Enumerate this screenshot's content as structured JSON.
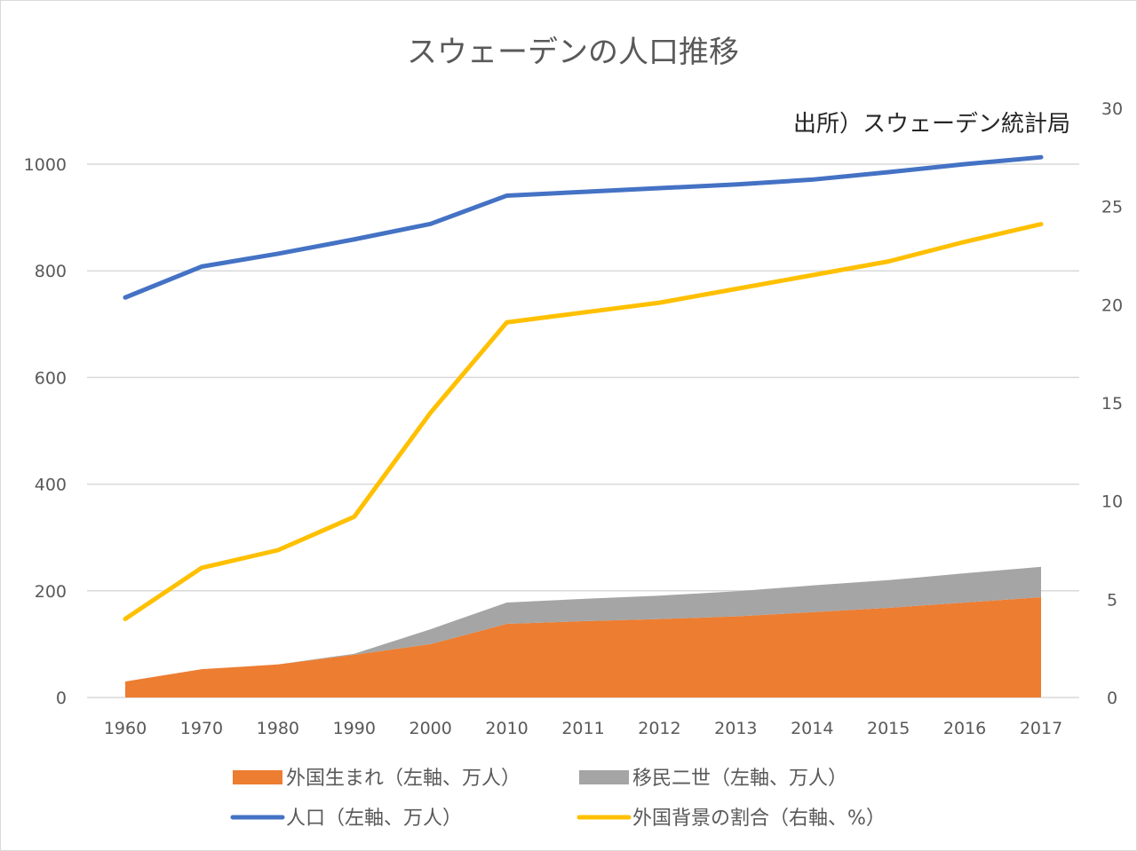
{
  "chart_data": {
    "type": "area",
    "title": "スウェーデンの人口推移",
    "annotation": "出所）スウェーデン統計局",
    "categories": [
      "1960",
      "1970",
      "1980",
      "1990",
      "2000",
      "2010",
      "2011",
      "2012",
      "2013",
      "2014",
      "2015",
      "2016",
      "2017"
    ],
    "left_axis": {
      "min": 0,
      "max": 1000,
      "ticks": [
        "0",
        "200",
        "400",
        "600",
        "800",
        "1000"
      ]
    },
    "right_axis": {
      "min": 0,
      "max": 30,
      "ticks": [
        "0",
        "5",
        "10",
        "15",
        "20",
        "25",
        "30"
      ]
    },
    "grid": true,
    "legend_position": "bottom",
    "series": [
      {
        "name": "外国生まれ（左軸、万人）",
        "kind": "stacked-area",
        "axis": "left",
        "color": "#ed7d31",
        "values": [
          30,
          53,
          62,
          80,
          100,
          138,
          143,
          147,
          152,
          160,
          168,
          178,
          188
        ]
      },
      {
        "name": "移民二世（左軸、万人）",
        "kind": "stacked-area",
        "axis": "left",
        "color": "#a5a5a5",
        "values": [
          0,
          0,
          0,
          2,
          28,
          40,
          42,
          44,
          47,
          50,
          52,
          55,
          57
        ]
      },
      {
        "name": "人口（左軸、万人）",
        "kind": "line",
        "axis": "left",
        "color": "#4472c4",
        "values": [
          750,
          808,
          832,
          859,
          888,
          941,
          948,
          955,
          962,
          971,
          985,
          1000,
          1013
        ]
      },
      {
        "name": "外国背景の割合（右軸、%）",
        "kind": "line",
        "axis": "right",
        "color": "#ffc000",
        "values": [
          4,
          6.6,
          7.5,
          9.2,
          14.5,
          19.1,
          19.6,
          20.1,
          20.8,
          21.5,
          22.2,
          23.2,
          24.1
        ]
      }
    ]
  }
}
